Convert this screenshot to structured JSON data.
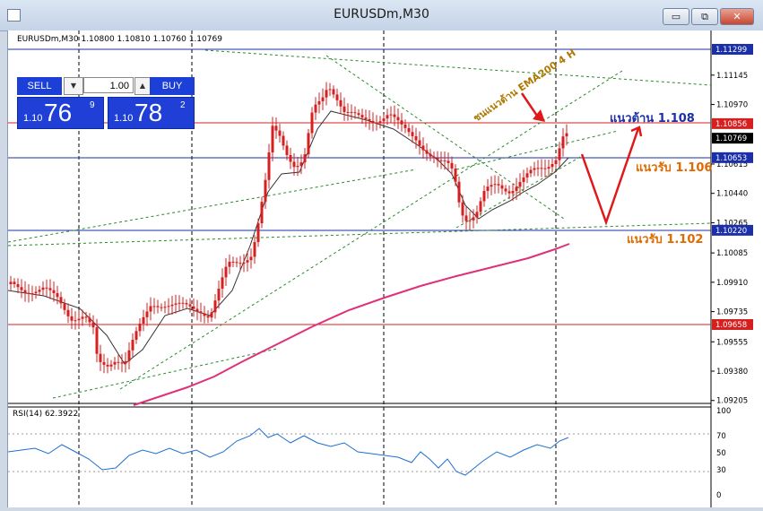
{
  "window": {
    "title": "EURUSDm,M30",
    "min_label": "▭",
    "restore_label": "⧉",
    "close_label": "✕"
  },
  "chart": {
    "header": "EURUSDm,M30  1.10800 1.10810 1.10760 1.10769",
    "price_ticks": [
      "1.11145",
      "1.10970",
      "1.10615",
      "1.10440",
      "1.10265",
      "1.10085",
      "1.09910",
      "1.09735",
      "1.09555",
      "1.09380",
      "1.09205"
    ],
    "highlighted_prices": [
      {
        "label": "1.11299",
        "color": "#1a2fa8"
      },
      {
        "label": "1.10856",
        "color": "#d62020"
      },
      {
        "label": "1.10769",
        "color": "#000000"
      },
      {
        "label": "1.10653",
        "color": "#1a2fa8"
      },
      {
        "label": "1.10220",
        "color": "#1a2fa8"
      },
      {
        "label": "1.09658",
        "color": "#d62020"
      }
    ],
    "annotations": {
      "resistance": "แนวต้าน 1.108",
      "support1": "แนวรับ 1.106",
      "support2": "แนวรับ 1.102",
      "ema_note": "ชนแนวต้าน EMA200  4 H"
    },
    "colors": {
      "candle": "#d62020",
      "ema200": "#e0307a",
      "resistance_text": "#1a2fa8",
      "support_text": "#e06a00",
      "ema_note_text": "#b07800"
    }
  },
  "rsi": {
    "label": "RSI(14) 62.3922",
    "ticks": [
      "100",
      "70",
      "50",
      "30",
      "0"
    ]
  },
  "trade_panel": {
    "sell_label": "SELL",
    "buy_label": "BUY",
    "volume": "1.00",
    "sell_prefix": "1.10",
    "sell_big": "76",
    "sell_sup": "9",
    "buy_prefix": "1.10",
    "buy_big": "78",
    "buy_sup": "2"
  }
}
